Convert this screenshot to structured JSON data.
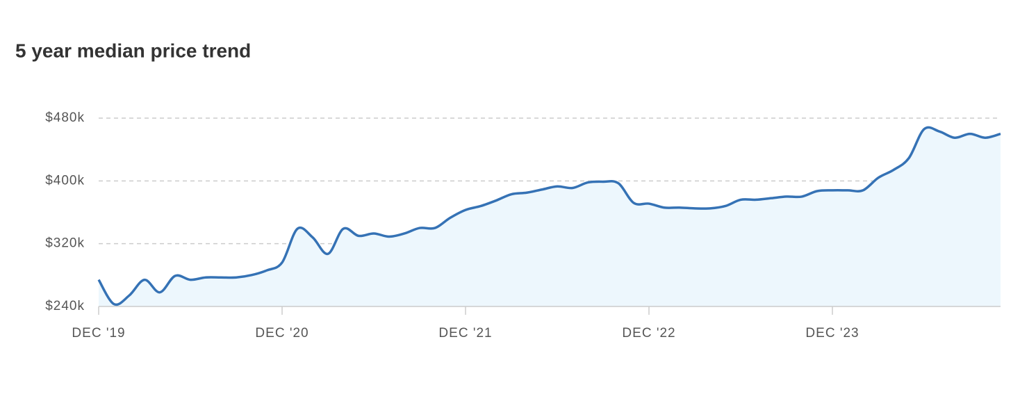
{
  "chart_data": {
    "type": "line",
    "title": "5 year median price trend",
    "categories": [
      "DEC '19",
      null,
      null,
      null,
      null,
      null,
      null,
      null,
      null,
      null,
      null,
      null,
      "DEC '20",
      null,
      null,
      null,
      null,
      null,
      null,
      null,
      null,
      null,
      null,
      null,
      "DEC '21",
      null,
      null,
      null,
      null,
      null,
      null,
      null,
      null,
      null,
      null,
      null,
      "DEC '22",
      null,
      null,
      null,
      null,
      null,
      null,
      null,
      null,
      null,
      null,
      null,
      "DEC '23",
      null,
      null,
      null,
      null,
      null,
      null,
      null,
      null,
      null,
      null,
      null
    ],
    "series": [
      {
        "name": "Median price",
        "color": "#3572b5",
        "values": [
          274000,
          243000,
          254000,
          274000,
          258000,
          279000,
          274000,
          277000,
          277000,
          277000,
          280000,
          286000,
          296000,
          339000,
          328000,
          307000,
          339000,
          330000,
          333000,
          329000,
          333000,
          340000,
          340000,
          353000,
          363000,
          368000,
          375000,
          383000,
          385000,
          389000,
          393000,
          391000,
          398000,
          399000,
          397000,
          372000,
          371000,
          366000,
          366000,
          365000,
          365000,
          368000,
          376000,
          376000,
          378000,
          380000,
          380000,
          387000,
          388000,
          388000,
          388000,
          404000,
          414000,
          429000,
          466000,
          463000,
          455000,
          460000,
          455000,
          460000
        ]
      }
    ],
    "ylim": [
      240000,
      480000
    ],
    "yticks": [
      {
        "value": 240000,
        "label": "$240k"
      },
      {
        "value": 320000,
        "label": "$320k"
      },
      {
        "value": 400000,
        "label": "$400k"
      },
      {
        "value": 480000,
        "label": "$480k"
      }
    ],
    "grid": true,
    "area_fill": "#edf7fd"
  }
}
